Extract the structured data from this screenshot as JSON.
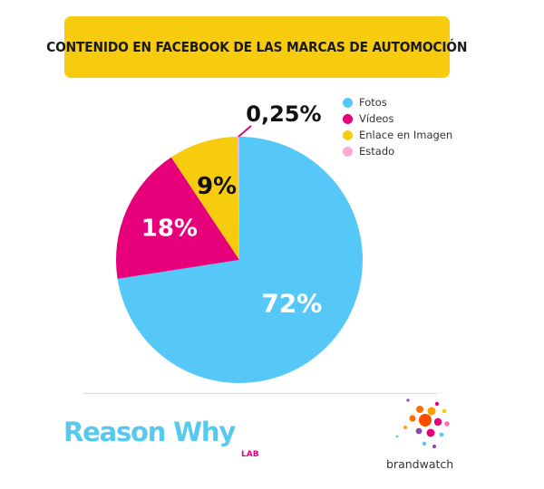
{
  "chart_data": {
    "type": "pie",
    "title": "CONTENIDO EN FACEBOOK DE LAS MARCAS DE AUTOMOCIÓN",
    "slices": [
      {
        "label": "Fotos",
        "value": 72,
        "display": "72%",
        "color": "#55c8f8"
      },
      {
        "label": "Vídeos",
        "value": 18,
        "display": "18%",
        "color": "#e8007b"
      },
      {
        "label": "Enlace en Imagen",
        "value": 9,
        "display": "9%",
        "color": "#f7cc0f"
      },
      {
        "label": "Estado",
        "value": 0.25,
        "display": "0,25%",
        "color": "#f9aed2"
      }
    ],
    "legend_position": "top-right"
  },
  "branding": {
    "reasonwhy": "Reason Why",
    "reasonwhy_suffix": "LAB",
    "brandwatch": "brandwatch",
    "brandwatch_logo_icon": "brandwatch-dots-logo"
  }
}
